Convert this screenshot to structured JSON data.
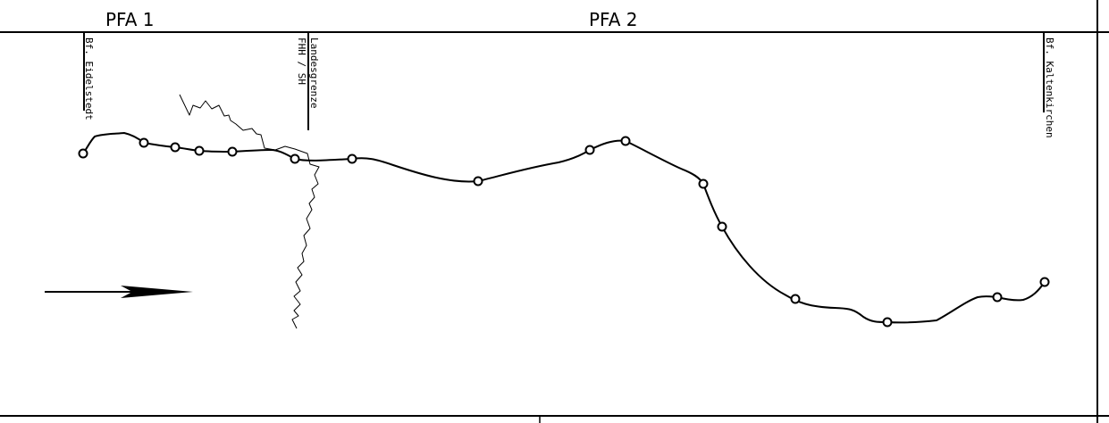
{
  "sections": {
    "pfa1": "PFA 1",
    "pfa2": "PFA 2"
  },
  "markers": {
    "eidelstedt": "Bf. Eidelstedt",
    "border_line1": "Landesgrenze",
    "border_line2": "FHH / SH",
    "kaltenkirchen": "Bf. Kaltenkirchen"
  },
  "direction_icon": "arrow-right-icon"
}
